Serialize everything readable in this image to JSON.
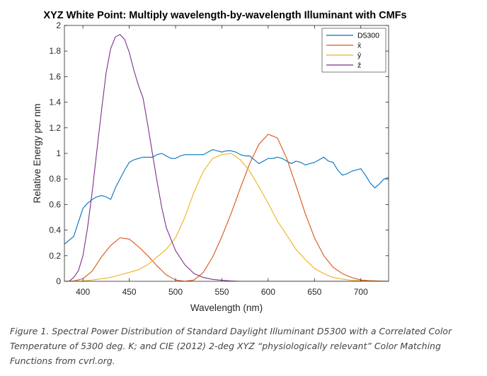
{
  "chart_data": {
    "type": "line",
    "title": "XYZ White Point: Multiply wavelength-by-wavelength Illuminant with CMFs",
    "xlabel": "Wavelength (nm)",
    "ylabel": "Relative Energy per nm",
    "xlim": [
      380,
      730
    ],
    "ylim": [
      0,
      2
    ],
    "xticks": [
      400,
      450,
      500,
      550,
      600,
      650,
      700
    ],
    "yticks": [
      0,
      0.2,
      0.4,
      0.6,
      0.8,
      1,
      1.2,
      1.4,
      1.6,
      1.8,
      2
    ],
    "ytick_labels": [
      "0",
      "0.2",
      "0.4",
      "0.6",
      "0.8",
      "1",
      "1.2",
      "1.4",
      "1.6",
      "1.8",
      "2"
    ],
    "grid": false,
    "legend_position": "top-right",
    "series": [
      {
        "name": "D5300",
        "color": "#0072BD",
        "x": [
          380,
          385,
          390,
          395,
          400,
          405,
          410,
          415,
          420,
          425,
          430,
          435,
          440,
          445,
          450,
          455,
          460,
          465,
          470,
          475,
          480,
          485,
          490,
          495,
          500,
          505,
          510,
          515,
          520,
          525,
          530,
          535,
          540,
          545,
          550,
          555,
          560,
          565,
          570,
          575,
          580,
          585,
          590,
          595,
          600,
          605,
          610,
          615,
          620,
          625,
          630,
          635,
          640,
          645,
          650,
          655,
          660,
          665,
          670,
          675,
          680,
          685,
          690,
          695,
          700,
          705,
          710,
          715,
          720,
          725,
          730
        ],
        "y": [
          0.29,
          0.32,
          0.35,
          0.46,
          0.57,
          0.61,
          0.64,
          0.66,
          0.67,
          0.66,
          0.64,
          0.73,
          0.8,
          0.87,
          0.93,
          0.95,
          0.96,
          0.97,
          0.97,
          0.97,
          0.99,
          1.0,
          0.98,
          0.96,
          0.96,
          0.98,
          0.99,
          0.99,
          0.99,
          0.99,
          0.99,
          1.01,
          1.03,
          1.02,
          1.01,
          1.02,
          1.02,
          1.01,
          0.99,
          0.98,
          0.98,
          0.95,
          0.92,
          0.94,
          0.96,
          0.96,
          0.97,
          0.96,
          0.94,
          0.92,
          0.94,
          0.93,
          0.91,
          0.92,
          0.93,
          0.95,
          0.97,
          0.94,
          0.93,
          0.87,
          0.83,
          0.84,
          0.86,
          0.87,
          0.88,
          0.83,
          0.77,
          0.73,
          0.76,
          0.8,
          0.81
        ]
      },
      {
        "name": "x̄",
        "color": "#D95319",
        "x": [
          380,
          390,
          400,
          410,
          420,
          430,
          440,
          450,
          460,
          470,
          480,
          490,
          500,
          510,
          520,
          530,
          540,
          550,
          560,
          570,
          580,
          590,
          600,
          610,
          620,
          630,
          640,
          650,
          660,
          670,
          680,
          690,
          700,
          710,
          720,
          730
        ],
        "y": [
          0.0,
          0.003,
          0.02,
          0.08,
          0.19,
          0.28,
          0.34,
          0.33,
          0.27,
          0.2,
          0.12,
          0.05,
          0.01,
          0.0,
          0.01,
          0.07,
          0.19,
          0.35,
          0.53,
          0.73,
          0.92,
          1.07,
          1.15,
          1.12,
          0.96,
          0.75,
          0.53,
          0.34,
          0.2,
          0.11,
          0.06,
          0.03,
          0.01,
          0.005,
          0.002,
          0.0
        ]
      },
      {
        "name": "ȳ",
        "color": "#EDB120",
        "x": [
          380,
          390,
          400,
          410,
          420,
          430,
          440,
          450,
          460,
          470,
          480,
          490,
          500,
          510,
          520,
          530,
          540,
          550,
          560,
          570,
          580,
          590,
          600,
          610,
          620,
          630,
          640,
          650,
          660,
          670,
          680,
          690,
          700,
          710,
          720,
          730
        ],
        "y": [
          0.0,
          0.001,
          0.003,
          0.01,
          0.02,
          0.03,
          0.05,
          0.07,
          0.09,
          0.13,
          0.19,
          0.25,
          0.34,
          0.5,
          0.7,
          0.86,
          0.96,
          0.99,
          1.0,
          0.95,
          0.86,
          0.74,
          0.61,
          0.47,
          0.36,
          0.25,
          0.17,
          0.1,
          0.06,
          0.03,
          0.017,
          0.008,
          0.004,
          0.002,
          0.001,
          0.0
        ]
      },
      {
        "name": "z̄",
        "color": "#7E2F8E",
        "x": [
          380,
          385,
          390,
          395,
          400,
          405,
          410,
          415,
          420,
          425,
          430,
          435,
          440,
          445,
          450,
          455,
          460,
          465,
          470,
          475,
          480,
          485,
          490,
          500,
          510,
          520,
          530,
          540,
          550,
          560,
          570,
          730
        ],
        "y": [
          0.0,
          0.0,
          0.03,
          0.08,
          0.2,
          0.42,
          0.7,
          1.02,
          1.33,
          1.63,
          1.82,
          1.91,
          1.93,
          1.89,
          1.79,
          1.65,
          1.53,
          1.43,
          1.22,
          1.0,
          0.78,
          0.58,
          0.42,
          0.24,
          0.13,
          0.06,
          0.03,
          0.015,
          0.008,
          0.003,
          0.0,
          0.0
        ]
      }
    ]
  },
  "caption": "Figure 1.  Spectral Power Distribution of Standard Daylight Illuminant D5300 with a Correlated Color Temperature of  5300 deg. K; and CIE (2012) 2-deg XYZ “physiologically relevant” Color Matching Functions from cvrl.org."
}
